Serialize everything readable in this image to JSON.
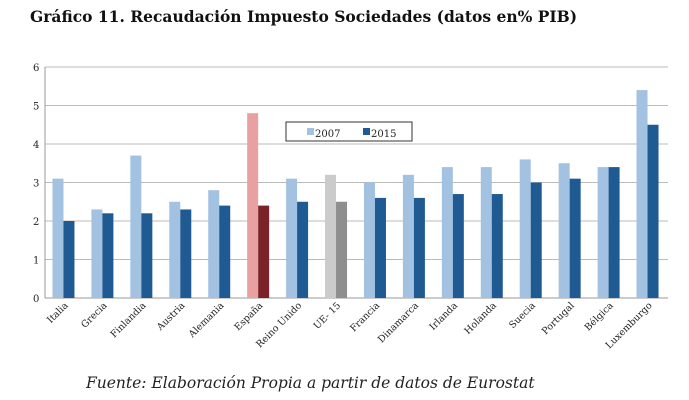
{
  "chart_data": {
    "type": "bar",
    "title": "Gráfico 11. Recaudación Impuesto Sociedades (datos en% PIB)",
    "source": "Fuente: Elaboración Propia a partir de datos de Eurostat",
    "categories": [
      "Italia",
      "Grecia",
      "Finlandia",
      "Austria",
      "Alemania",
      "España",
      "Reino Unido",
      "UE- 15",
      "Francia",
      "Dinamarca",
      "Irlanda",
      "Holanda",
      "Suecia",
      "Portugal",
      "Bélgica",
      "Luxemburgo"
    ],
    "series": [
      {
        "name": "2007",
        "color": "#a3c1e0",
        "values": [
          3.1,
          2.3,
          3.7,
          2.5,
          2.8,
          4.8,
          3.1,
          3.2,
          3.0,
          3.2,
          3.4,
          3.4,
          3.6,
          3.5,
          3.4,
          5.4
        ]
      },
      {
        "name": "2015",
        "color": "#1f5a93",
        "values": [
          2.0,
          2.2,
          2.2,
          2.3,
          2.4,
          2.4,
          2.5,
          2.5,
          2.6,
          2.6,
          2.7,
          2.7,
          3.0,
          3.1,
          3.4,
          4.5
        ]
      }
    ],
    "highlight_colors": {
      "España": [
        "#e8a0a0",
        "#7b2328"
      ],
      "UE- 15": [
        "#cbcbcb",
        "#8e8e8e"
      ]
    },
    "yticks": [
      0,
      1,
      2,
      3,
      4,
      5,
      6
    ],
    "ylim": [
      0,
      6
    ],
    "grid": true,
    "legend": "top-center"
  }
}
